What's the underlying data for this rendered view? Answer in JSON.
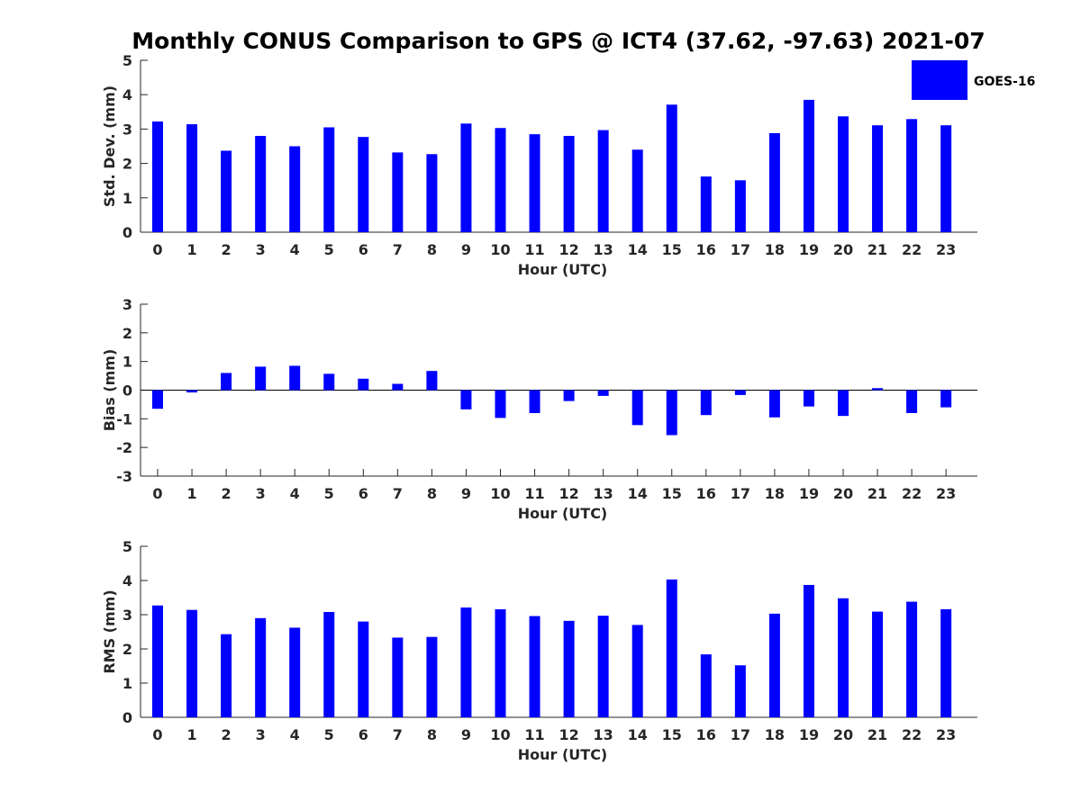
{
  "title": "Monthly CONUS Comparison to GPS @ ICT4 (37.62, -97.63) 2021-07",
  "colors": {
    "bar": "#0000ff",
    "axis": "#262626"
  },
  "legend": {
    "label": "GOES-16",
    "placement": "top-right"
  },
  "chart_data": [
    {
      "type": "bar",
      "xlabel": "Hour (UTC)",
      "ylabel": "Std. Dev. (mm)",
      "ylim": [
        0,
        5
      ],
      "yticks": [
        0,
        1,
        2,
        3,
        4,
        5
      ],
      "categories": [
        "0",
        "1",
        "2",
        "3",
        "4",
        "5",
        "6",
        "7",
        "8",
        "9",
        "10",
        "11",
        "12",
        "13",
        "14",
        "15",
        "16",
        "17",
        "18",
        "19",
        "20",
        "21",
        "22",
        "23"
      ],
      "series": [
        {
          "name": "GOES-16",
          "values": [
            3.22,
            3.14,
            2.37,
            2.8,
            2.5,
            3.05,
            2.77,
            2.32,
            2.27,
            3.16,
            3.03,
            2.85,
            2.8,
            2.97,
            2.4,
            3.71,
            1.62,
            1.51,
            2.88,
            3.85,
            3.37,
            3.11,
            3.29,
            3.11
          ]
        }
      ],
      "grid": false
    },
    {
      "type": "bar",
      "xlabel": "Hour (UTC)",
      "ylabel": "Bias (mm)",
      "ylim": [
        -3,
        3
      ],
      "yticks": [
        -3,
        -2,
        -1,
        0,
        1,
        2,
        3
      ],
      "categories": [
        "0",
        "1",
        "2",
        "3",
        "4",
        "5",
        "6",
        "7",
        "8",
        "9",
        "10",
        "11",
        "12",
        "13",
        "14",
        "15",
        "16",
        "17",
        "18",
        "19",
        "20",
        "21",
        "22",
        "23"
      ],
      "series": [
        {
          "name": "GOES-16",
          "values": [
            -0.65,
            -0.08,
            0.6,
            0.82,
            0.85,
            0.57,
            0.4,
            0.22,
            0.67,
            -0.67,
            -0.97,
            -0.8,
            -0.38,
            -0.2,
            -1.22,
            -1.57,
            -0.87,
            -0.17,
            -0.95,
            -0.57,
            -0.9,
            0.07,
            -0.8,
            -0.6
          ]
        }
      ],
      "grid": false
    },
    {
      "type": "bar",
      "xlabel": "Hour (UTC)",
      "ylabel": "RMS (mm)",
      "ylim": [
        0,
        5
      ],
      "yticks": [
        0,
        1,
        2,
        3,
        4,
        5
      ],
      "categories": [
        "0",
        "1",
        "2",
        "3",
        "4",
        "5",
        "6",
        "7",
        "8",
        "9",
        "10",
        "11",
        "12",
        "13",
        "14",
        "15",
        "16",
        "17",
        "18",
        "19",
        "20",
        "21",
        "22",
        "23"
      ],
      "series": [
        {
          "name": "GOES-16",
          "values": [
            3.27,
            3.14,
            2.43,
            2.9,
            2.62,
            3.08,
            2.8,
            2.33,
            2.35,
            3.21,
            3.16,
            2.96,
            2.82,
            2.97,
            2.7,
            4.03,
            1.84,
            1.52,
            3.03,
            3.87,
            3.48,
            3.09,
            3.38,
            3.16
          ]
        }
      ],
      "grid": false
    }
  ]
}
